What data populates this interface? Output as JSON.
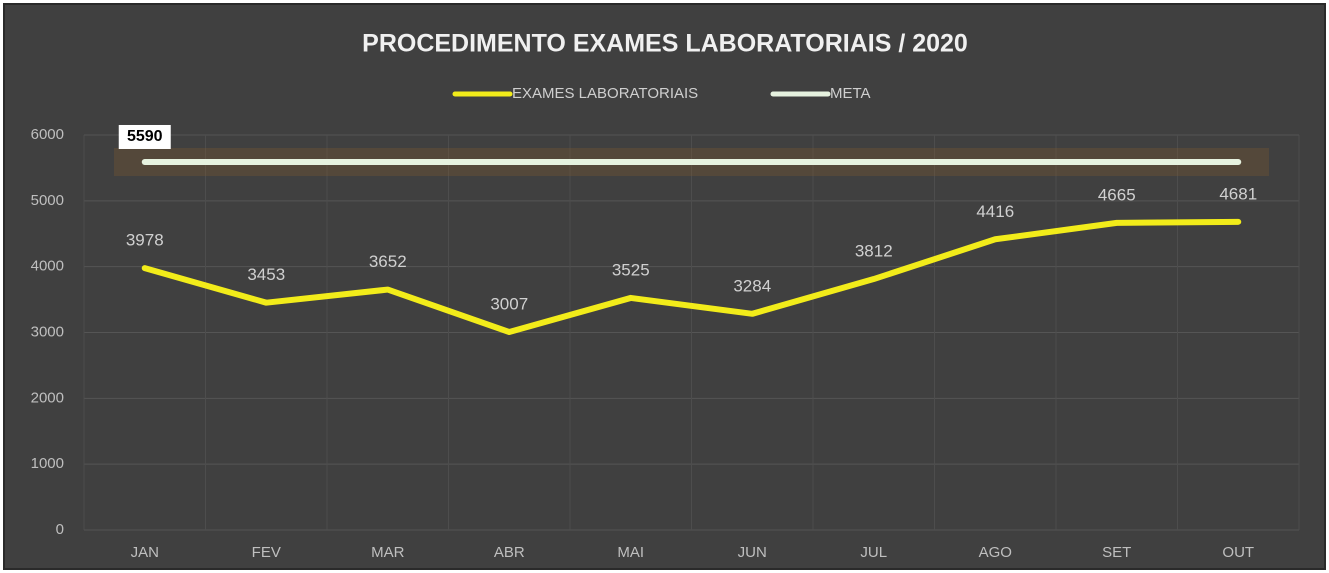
{
  "chart_data": {
    "type": "line",
    "title": "PROCEDIMENTO EXAMES LABORATORIAIS / 2020",
    "categories": [
      "JAN",
      "FEV",
      "MAR",
      "ABR",
      "MAI",
      "JUN",
      "JUL",
      "AGO",
      "SET",
      "OUT"
    ],
    "series": [
      {
        "name": "EXAMES LABORATORIAIS",
        "color": "#f2ec1a",
        "values": [
          3978,
          3453,
          3652,
          3007,
          3525,
          3284,
          3812,
          4416,
          4665,
          4681
        ]
      },
      {
        "name": "META",
        "color": "#e6f2df",
        "values": [
          5590,
          5590,
          5590,
          5590,
          5590,
          5590,
          5590,
          5590,
          5590,
          5590
        ]
      }
    ],
    "ylim": [
      0,
      6000
    ],
    "yticks": [
      0,
      1000,
      2000,
      3000,
      4000,
      5000,
      6000
    ],
    "grid": true,
    "legend": "top"
  }
}
